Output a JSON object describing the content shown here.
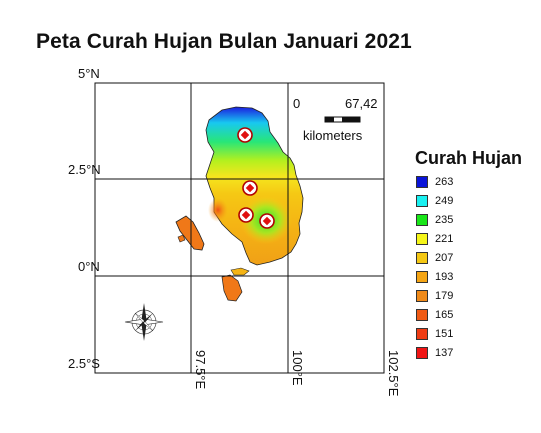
{
  "title": "Peta Curah Hujan Bulan Januari 2021",
  "latitude_labels": [
    "5°N",
    "2.5°N",
    "0°N",
    "2.5°S"
  ],
  "longitude_labels": [
    "97.5°E",
    "100°E",
    "102.5°E"
  ],
  "scale_bar": {
    "start_label": "0",
    "end_label": "67,42",
    "unit_label": "kilometers"
  },
  "legend": {
    "title": "Curah Hujan",
    "items": [
      {
        "label": "263",
        "color": "#0a14d8"
      },
      {
        "label": "249",
        "color": "#19f0f0"
      },
      {
        "label": "235",
        "color": "#19e619"
      },
      {
        "label": "221",
        "color": "#f5f519"
      },
      {
        "label": "207",
        "color": "#f5c814"
      },
      {
        "label": "193",
        "color": "#f5a514"
      },
      {
        "label": "179",
        "color": "#f08a19"
      },
      {
        "label": "165",
        "color": "#f05a14"
      },
      {
        "label": "151",
        "color": "#ee3c14"
      },
      {
        "label": "137",
        "color": "#f01414"
      }
    ]
  },
  "icons": {
    "stations": "station-marker-icon",
    "compass": "compass-rose-icon"
  },
  "station_count": 4
}
